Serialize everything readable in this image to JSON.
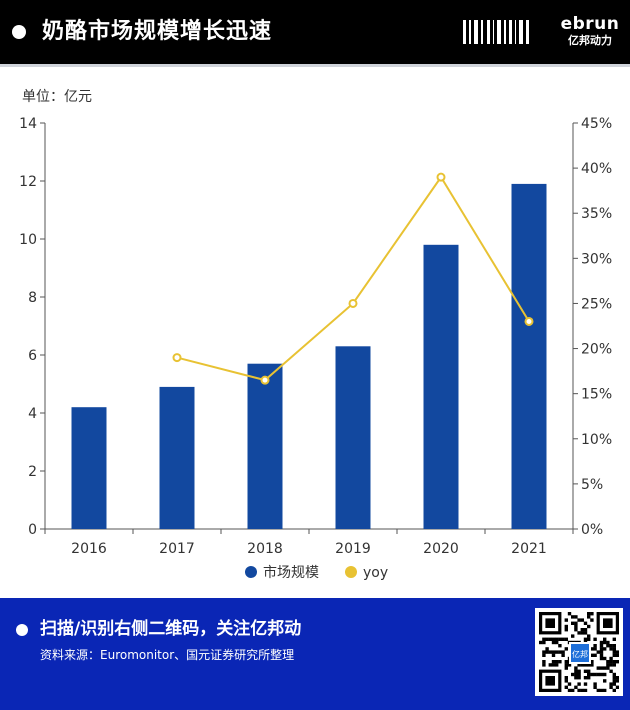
{
  "header": {
    "title": "奶酪市场规模增长迅速",
    "logo_en": "ebrun",
    "logo_cn": "亿邦动力",
    "barcode_icon": "barcode-icon"
  },
  "colors": {
    "bar": "#12489f",
    "line": "#e8c233",
    "axis": "#555555",
    "footer_bg": "#0a26b5"
  },
  "chart_data": {
    "type": "bar",
    "unit_label": "单位：亿元",
    "categories": [
      "2016",
      "2017",
      "2018",
      "2019",
      "2020",
      "2021"
    ],
    "series": [
      {
        "name": "市场规模",
        "type": "bar",
        "axis": "left",
        "values": [
          4.2,
          4.9,
          5.7,
          6.3,
          9.8,
          11.9
        ]
      },
      {
        "name": "yoy",
        "type": "line",
        "axis": "right",
        "values": [
          null,
          19.0,
          16.5,
          25.0,
          39.0,
          23.0
        ]
      }
    ],
    "y_left": {
      "range": [
        0,
        14
      ],
      "ticks": [
        "0",
        "2",
        "4",
        "6",
        "8",
        "10",
        "12",
        "14"
      ]
    },
    "y_right": {
      "range": [
        0,
        45
      ],
      "ticks": [
        "0%",
        "5%",
        "10%",
        "15%",
        "20%",
        "25%",
        "30%",
        "35%",
        "40%",
        "45%"
      ]
    },
    "legend": {
      "position": "bottom",
      "entries": [
        "市场规模",
        "yoy"
      ]
    },
    "grid": false
  },
  "footer": {
    "cta": "扫描/识别右侧二维码，关注亿邦动",
    "source": "资料来源：Euromonitor、国元证券研究所整理",
    "qr_center": "亿邦",
    "qr_icon": "qr-code-icon"
  }
}
